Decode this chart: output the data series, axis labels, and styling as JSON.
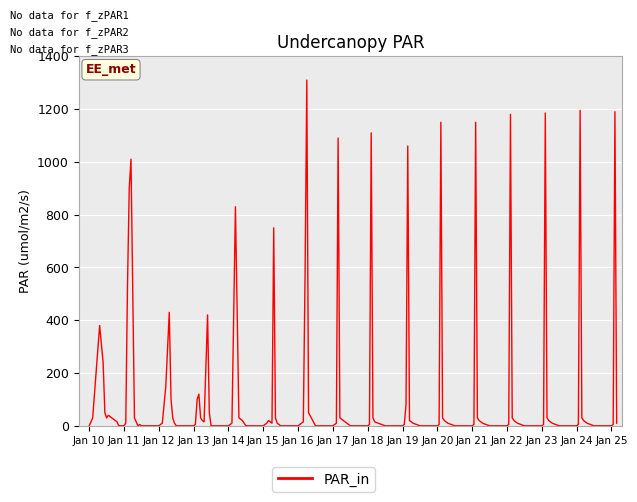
{
  "title": "Undercanopy PAR",
  "ylabel": "PAR (umol/m2/s)",
  "ylim": [
    0,
    1400
  ],
  "yticks": [
    0,
    200,
    400,
    600,
    800,
    1000,
    1200,
    1400
  ],
  "background_color": "#ebebeb",
  "no_data_texts": [
    "No data for f_zPAR1",
    "No data for f_zPAR2",
    "No data for f_zPAR3"
  ],
  "ee_met_label": "EE_met",
  "legend_label": "PAR_in",
  "line_color": "red",
  "x_labels": [
    "Jan 10",
    "Jan 11",
    "Jan 12",
    "Jan 13",
    "Jan 14",
    "Jan 15",
    "Jan 16",
    "Jan 17",
    "Jan 18",
    "Jan 19",
    "Jan 20",
    "Jan 21",
    "Jan 22",
    "Jan 23",
    "Jan 24",
    "Jan 25"
  ],
  "x_values": [
    0,
    1,
    2,
    3,
    4,
    5,
    6,
    7,
    8,
    9,
    10,
    11,
    12,
    13,
    14,
    15
  ],
  "par_data_x": [
    0.0,
    0.1,
    0.3,
    0.4,
    0.45,
    0.5,
    0.55,
    0.6,
    0.65,
    0.7,
    0.75,
    0.8,
    0.85,
    1.0,
    1.05,
    1.1,
    1.15,
    1.2,
    1.3,
    1.4,
    1.45,
    1.5,
    2.0,
    2.05,
    2.1,
    2.2,
    2.3,
    2.35,
    2.4,
    2.45,
    2.5,
    3.0,
    3.05,
    3.1,
    3.15,
    3.2,
    3.25,
    3.3,
    3.4,
    3.45,
    3.5,
    4.0,
    4.05,
    4.1,
    4.15,
    4.2,
    4.3,
    4.4,
    4.5,
    5.0,
    5.05,
    5.1,
    5.15,
    5.2,
    5.25,
    5.3,
    5.35,
    5.4,
    5.5,
    6.0,
    6.05,
    6.1,
    6.15,
    6.2,
    6.25,
    6.3,
    6.5,
    7.0,
    7.05,
    7.1,
    7.15,
    7.2,
    7.3,
    7.4,
    7.5,
    8.0,
    8.05,
    8.1,
    8.15,
    8.2,
    8.3,
    8.4,
    8.5,
    9.0,
    9.05,
    9.1,
    9.15,
    9.2,
    9.3,
    9.4,
    9.5,
    10.0,
    10.05,
    10.1,
    10.15,
    10.2,
    10.3,
    10.4,
    10.5,
    11.0,
    11.05,
    11.1,
    11.15,
    11.2,
    11.3,
    11.4,
    11.5,
    12.0,
    12.05,
    12.1,
    12.15,
    12.2,
    12.3,
    12.4,
    12.5,
    13.0,
    13.05,
    13.1,
    13.15,
    13.2,
    13.3,
    13.4,
    13.5,
    14.0,
    14.05,
    14.1,
    14.15,
    14.2,
    14.3,
    14.4,
    14.5,
    15.0,
    15.05,
    15.1,
    15.15
  ],
  "par_data_y": [
    0,
    30,
    380,
    240,
    50,
    30,
    40,
    35,
    30,
    25,
    20,
    15,
    0,
    0,
    10,
    530,
    900,
    1010,
    30,
    0,
    5,
    0,
    0,
    5,
    10,
    150,
    430,
    100,
    30,
    10,
    0,
    0,
    5,
    100,
    120,
    30,
    20,
    15,
    420,
    50,
    0,
    0,
    5,
    10,
    410,
    830,
    30,
    20,
    0,
    0,
    5,
    10,
    20,
    15,
    10,
    750,
    30,
    10,
    0,
    0,
    5,
    10,
    15,
    570,
    1310,
    50,
    0,
    0,
    5,
    10,
    1090,
    30,
    20,
    10,
    0,
    0,
    5,
    1110,
    30,
    15,
    10,
    5,
    0,
    0,
    5,
    80,
    1060,
    20,
    10,
    5,
    0,
    0,
    5,
    1150,
    30,
    20,
    10,
    5,
    0,
    0,
    5,
    1150,
    30,
    20,
    10,
    5,
    0,
    0,
    5,
    1180,
    30,
    20,
    10,
    5,
    0,
    0,
    5,
    1185,
    30,
    20,
    10,
    5,
    0,
    0,
    5,
    1195,
    30,
    20,
    10,
    5,
    0,
    0,
    5,
    1190,
    10
  ]
}
